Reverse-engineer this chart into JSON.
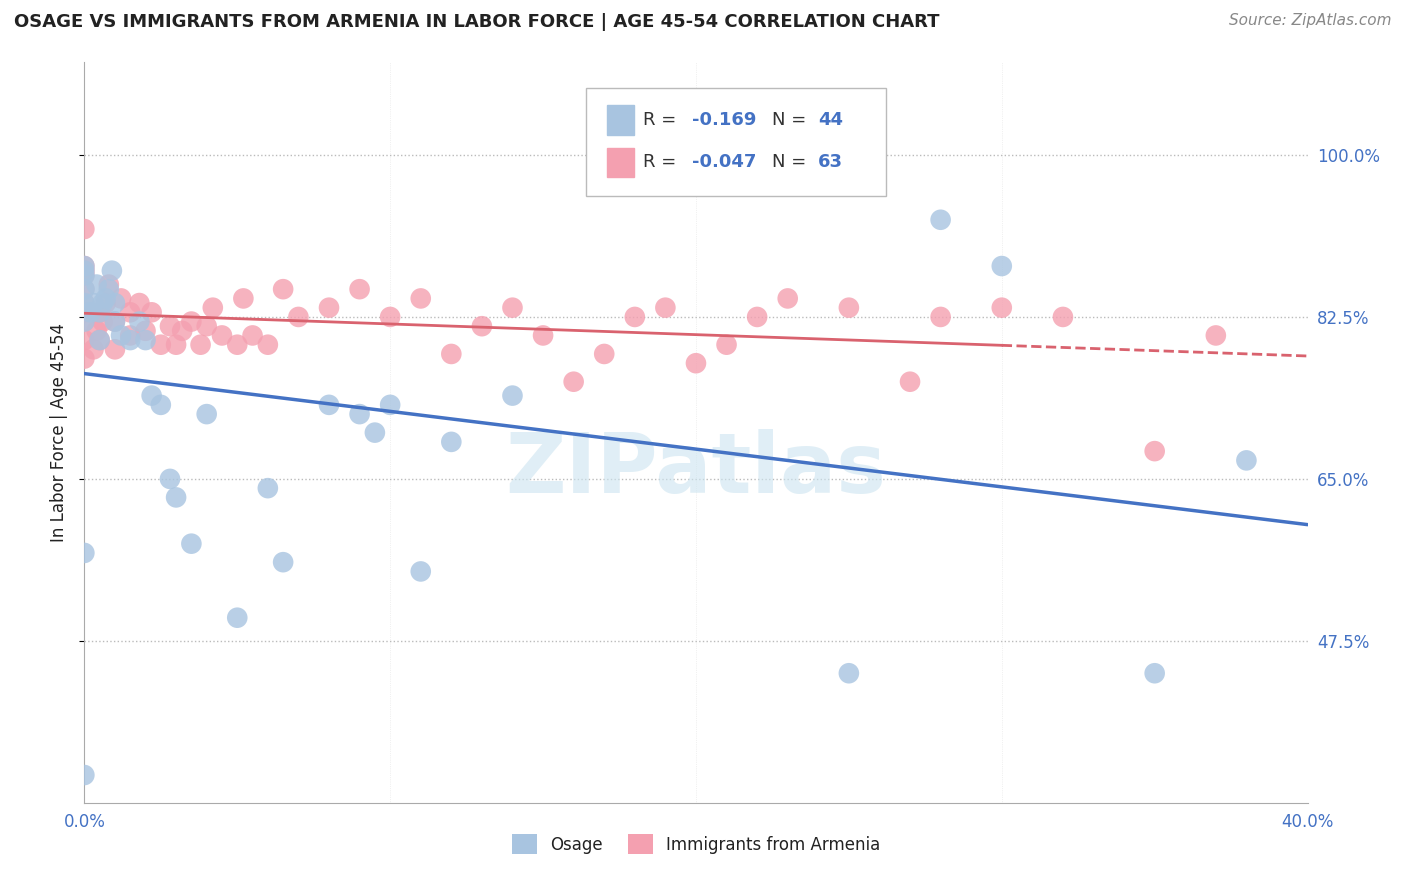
{
  "title": "OSAGE VS IMMIGRANTS FROM ARMENIA IN LABOR FORCE | AGE 45-54 CORRELATION CHART",
  "source": "Source: ZipAtlas.com",
  "ylabel": "In Labor Force | Age 45-54",
  "xlim": [
    0.0,
    0.4
  ],
  "ylim": [
    0.3,
    1.1
  ],
  "yticks": [
    0.475,
    0.65,
    0.825,
    1.0
  ],
  "ytick_labels": [
    "47.5%",
    "65.0%",
    "82.5%",
    "100.0%"
  ],
  "xticks": [
    0.0,
    0.1,
    0.2,
    0.3,
    0.4
  ],
  "xtick_labels": [
    "0.0%",
    "",
    "",
    "",
    "40.0%"
  ],
  "osage_R": -0.169,
  "osage_N": 44,
  "armenia_R": -0.047,
  "armenia_N": 63,
  "osage_color": "#a8c4e0",
  "armenia_color": "#f4a0b0",
  "osage_line_color": "#4472c4",
  "armenia_line_color": "#d9626e",
  "watermark_color": "#cce4f0",
  "osage_x": [
    0.0,
    0.0,
    0.0,
    0.0,
    0.0,
    0.0,
    0.0,
    0.0,
    0.002,
    0.003,
    0.004,
    0.005,
    0.005,
    0.006,
    0.007,
    0.008,
    0.009,
    0.01,
    0.01,
    0.012,
    0.015,
    0.018,
    0.02,
    0.022,
    0.025,
    0.028,
    0.03,
    0.035,
    0.04,
    0.05,
    0.06,
    0.065,
    0.08,
    0.09,
    0.095,
    0.1,
    0.11,
    0.12,
    0.14,
    0.25,
    0.28,
    0.3,
    0.35,
    0.38
  ],
  "osage_y": [
    0.33,
    0.57,
    0.82,
    0.84,
    0.855,
    0.87,
    0.875,
    0.88,
    0.83,
    0.84,
    0.86,
    0.8,
    0.83,
    0.84,
    0.845,
    0.855,
    0.875,
    0.82,
    0.84,
    0.805,
    0.8,
    0.82,
    0.8,
    0.74,
    0.73,
    0.65,
    0.63,
    0.58,
    0.72,
    0.5,
    0.64,
    0.56,
    0.73,
    0.72,
    0.7,
    0.73,
    0.55,
    0.69,
    0.74,
    0.44,
    0.93,
    0.88,
    0.44,
    0.67
  ],
  "armenia_x": [
    0.0,
    0.0,
    0.0,
    0.0,
    0.0,
    0.0,
    0.0,
    0.0,
    0.0,
    0.0,
    0.003,
    0.004,
    0.005,
    0.005,
    0.006,
    0.007,
    0.008,
    0.01,
    0.01,
    0.012,
    0.015,
    0.015,
    0.018,
    0.02,
    0.022,
    0.025,
    0.028,
    0.03,
    0.032,
    0.035,
    0.038,
    0.04,
    0.042,
    0.045,
    0.05,
    0.052,
    0.055,
    0.06,
    0.065,
    0.07,
    0.08,
    0.09,
    0.1,
    0.11,
    0.12,
    0.13,
    0.14,
    0.15,
    0.16,
    0.17,
    0.18,
    0.19,
    0.2,
    0.21,
    0.22,
    0.23,
    0.25,
    0.27,
    0.28,
    0.3,
    0.32,
    0.35,
    0.37
  ],
  "armenia_y": [
    0.78,
    0.8,
    0.82,
    0.83,
    0.84,
    0.855,
    0.87,
    0.875,
    0.88,
    0.92,
    0.79,
    0.81,
    0.8,
    0.83,
    0.82,
    0.84,
    0.86,
    0.79,
    0.82,
    0.845,
    0.805,
    0.83,
    0.84,
    0.81,
    0.83,
    0.795,
    0.815,
    0.795,
    0.81,
    0.82,
    0.795,
    0.815,
    0.835,
    0.805,
    0.795,
    0.845,
    0.805,
    0.795,
    0.855,
    0.825,
    0.835,
    0.855,
    0.825,
    0.845,
    0.785,
    0.815,
    0.835,
    0.805,
    0.755,
    0.785,
    0.825,
    0.835,
    0.775,
    0.795,
    0.825,
    0.845,
    0.835,
    0.755,
    0.825,
    0.835,
    0.825,
    0.68,
    0.805
  ],
  "background_color": "#ffffff",
  "grid_color": "#bbbbbb",
  "title_color": "#222222",
  "label_color": "#4472c4"
}
